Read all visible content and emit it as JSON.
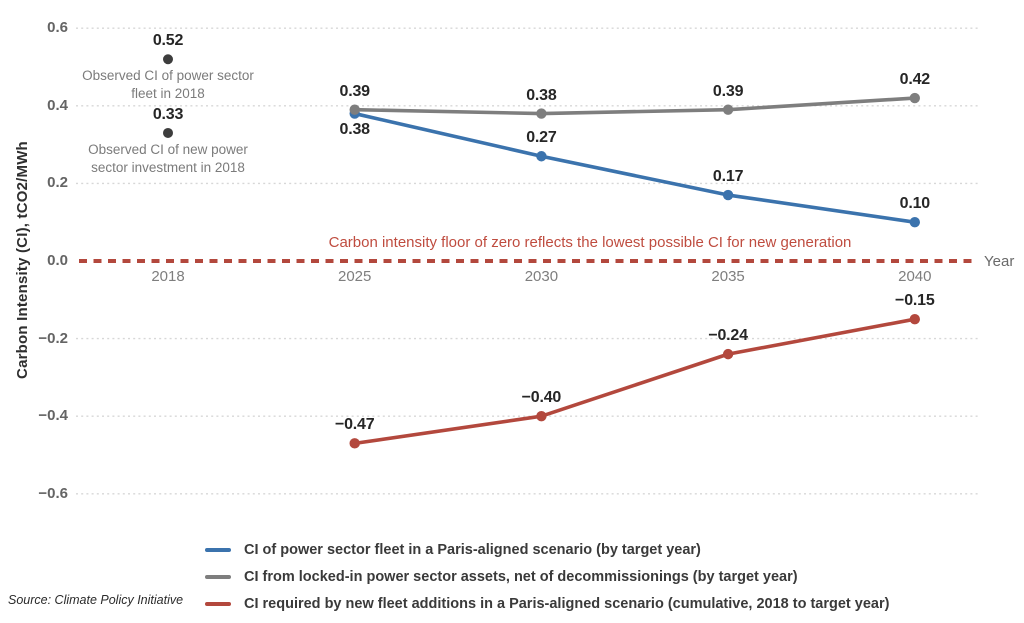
{
  "chart_data": {
    "type": "line",
    "x_years": [
      2018,
      2025,
      2030,
      2035,
      2040
    ],
    "x_tick_labels": [
      "2018",
      "2025",
      "2030",
      "2035",
      "2040"
    ],
    "xlabel": "Year",
    "ylabel": "Carbon Intensity (CI), tCO2/MWh",
    "ylim": [
      -0.6,
      0.6
    ],
    "yticks": [
      0.6,
      0.4,
      0.2,
      0.0,
      -0.2,
      -0.4,
      -0.6
    ],
    "grid": "horizontal-dotted",
    "legend_position": "bottom",
    "series": [
      {
        "name": "CI of power sector fleet in a Paris-aligned scenario (by target year)",
        "color": "#3B73AD",
        "x": [
          2025,
          2030,
          2035,
          2040
        ],
        "values": [
          0.38,
          0.27,
          0.17,
          0.1
        ],
        "label_positions": [
          "below",
          "above",
          "above",
          "above"
        ]
      },
      {
        "name": "CI from locked-in power sector assets, net of decommissionings (by target year)",
        "color": "#7E7E7E",
        "x": [
          2025,
          2030,
          2035,
          2040
        ],
        "values": [
          0.39,
          0.38,
          0.39,
          0.42
        ],
        "label_positions": [
          "above",
          "above",
          "above",
          "above"
        ]
      },
      {
        "name": "CI required by new fleet additions in a Paris-aligned scenario (cumulative, 2018 to target year)",
        "color": "#B3483D",
        "x": [
          2025,
          2030,
          2035,
          2040
        ],
        "values": [
          -0.47,
          -0.4,
          -0.24,
          -0.15
        ],
        "label_positions": [
          "above",
          "above",
          "above",
          "above"
        ]
      }
    ],
    "observed_points": [
      {
        "year": 2018,
        "value": 0.52,
        "color": "#3d3d3d",
        "caption": "Observed CI of power sector fleet in 2018"
      },
      {
        "year": 2018,
        "value": 0.33,
        "color": "#3d3d3d",
        "caption": "Observed CI of new power sector investment in 2018"
      }
    ],
    "zero_line": {
      "value": 0.0,
      "style": "dashed",
      "color": "#B3483D",
      "annotation": "Carbon intensity floor of zero reflects the lowest possible CI for new generation"
    }
  },
  "legend": {
    "items": [
      {
        "label": "CI of power sector fleet in a Paris-aligned scenario (by target year)",
        "color": "#3B73AD"
      },
      {
        "label": "CI from locked-in power sector assets, net of decommissionings (by target year)",
        "color": "#7E7E7E"
      },
      {
        "label": "CI required by new fleet additions in a Paris-aligned scenario (cumulative, 2018 to target year)",
        "color": "#B3483D"
      }
    ]
  },
  "source": {
    "text": "Source: Climate Policy Initiative"
  }
}
